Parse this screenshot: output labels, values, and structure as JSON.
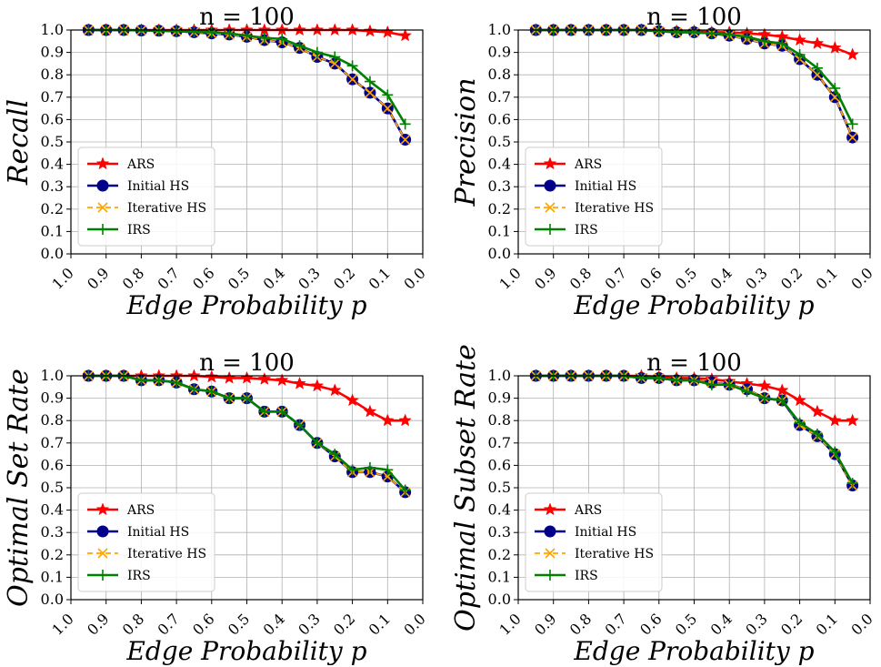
{
  "chart_data": [
    {
      "type": "line",
      "title": "n = 100",
      "xlabel": "Edge Probability p",
      "ylabel": "Recall",
      "xlim": [
        1.0,
        0.0
      ],
      "ylim": [
        0.0,
        1.0
      ],
      "x_ticks": [
        "1.0",
        "0.9",
        "0.8",
        "0.7",
        "0.6",
        "0.5",
        "0.4",
        "0.3",
        "0.2",
        "0.1",
        "0.0"
      ],
      "y_ticks": [
        "0.0",
        "0.1",
        "0.2",
        "0.3",
        "0.4",
        "0.5",
        "0.6",
        "0.7",
        "0.8",
        "0.9",
        "1.0"
      ],
      "grid": true,
      "legend_position": "lower-left",
      "x": [
        0.95,
        0.9,
        0.85,
        0.8,
        0.75,
        0.7,
        0.65,
        0.6,
        0.55,
        0.5,
        0.45,
        0.4,
        0.35,
        0.3,
        0.25,
        0.2,
        0.15,
        0.1,
        0.05
      ],
      "series": [
        {
          "name": "ARS",
          "color": "#ff0000",
          "marker": "star",
          "values": [
            1.0,
            1.0,
            1.0,
            1.0,
            1.0,
            1.0,
            1.0,
            1.0,
            1.0,
            1.0,
            1.0,
            1.0,
            1.0,
            1.0,
            1.0,
            1.0,
            0.995,
            0.99,
            0.975
          ]
        },
        {
          "name": "Initial HS",
          "color": "#00008b",
          "marker": "circle",
          "values": [
            1.0,
            1.0,
            1.0,
            0.998,
            0.997,
            0.995,
            0.99,
            0.985,
            0.98,
            0.97,
            0.955,
            0.945,
            0.92,
            0.88,
            0.85,
            0.78,
            0.72,
            0.65,
            0.51
          ]
        },
        {
          "name": "Iterative HS",
          "color": "#ffa500",
          "marker": "x",
          "dashed": true,
          "values": [
            1.0,
            1.0,
            1.0,
            0.998,
            0.997,
            0.995,
            0.99,
            0.985,
            0.98,
            0.97,
            0.955,
            0.945,
            0.92,
            0.88,
            0.85,
            0.78,
            0.72,
            0.65,
            0.51
          ]
        },
        {
          "name": "IRS",
          "color": "#008000",
          "marker": "plus",
          "values": [
            1.0,
            1.0,
            1.0,
            0.998,
            0.997,
            0.995,
            0.992,
            0.99,
            0.985,
            0.975,
            0.965,
            0.96,
            0.93,
            0.9,
            0.88,
            0.84,
            0.77,
            0.71,
            0.58
          ]
        }
      ]
    },
    {
      "type": "line",
      "title": "n = 100",
      "xlabel": "Edge Probability p",
      "ylabel": "Precision",
      "xlim": [
        1.0,
        0.0
      ],
      "ylim": [
        0.0,
        1.0
      ],
      "x_ticks": [
        "1.0",
        "0.9",
        "0.8",
        "0.7",
        "0.6",
        "0.5",
        "0.4",
        "0.3",
        "0.2",
        "0.1",
        "0.0"
      ],
      "y_ticks": [
        "0.0",
        "0.1",
        "0.2",
        "0.3",
        "0.4",
        "0.5",
        "0.6",
        "0.7",
        "0.8",
        "0.9",
        "1.0"
      ],
      "grid": true,
      "legend_position": "lower-left",
      "x": [
        0.95,
        0.9,
        0.85,
        0.8,
        0.75,
        0.7,
        0.65,
        0.6,
        0.55,
        0.5,
        0.45,
        0.4,
        0.35,
        0.3,
        0.25,
        0.2,
        0.15,
        0.1,
        0.05
      ],
      "series": [
        {
          "name": "ARS",
          "color": "#ff0000",
          "marker": "star",
          "values": [
            1.0,
            1.0,
            1.0,
            1.0,
            1.0,
            1.0,
            1.0,
            1.0,
            0.995,
            0.995,
            0.99,
            0.99,
            0.985,
            0.98,
            0.97,
            0.955,
            0.94,
            0.92,
            0.89
          ]
        },
        {
          "name": "Initial HS",
          "color": "#00008b",
          "marker": "circle",
          "values": [
            1.0,
            1.0,
            1.0,
            1.0,
            1.0,
            1.0,
            1.0,
            0.995,
            0.99,
            0.99,
            0.985,
            0.975,
            0.96,
            0.94,
            0.93,
            0.87,
            0.8,
            0.7,
            0.52
          ]
        },
        {
          "name": "Iterative HS",
          "color": "#ffa500",
          "marker": "x",
          "dashed": true,
          "values": [
            1.0,
            1.0,
            1.0,
            1.0,
            1.0,
            1.0,
            1.0,
            0.995,
            0.99,
            0.99,
            0.985,
            0.975,
            0.96,
            0.94,
            0.93,
            0.87,
            0.8,
            0.7,
            0.52
          ]
        },
        {
          "name": "IRS",
          "color": "#008000",
          "marker": "plus",
          "values": [
            1.0,
            1.0,
            1.0,
            1.0,
            1.0,
            1.0,
            1.0,
            0.995,
            0.99,
            0.99,
            0.985,
            0.98,
            0.97,
            0.95,
            0.94,
            0.89,
            0.83,
            0.74,
            0.58
          ]
        }
      ]
    },
    {
      "type": "line",
      "title": "n = 100",
      "xlabel": "Edge Probability p",
      "ylabel": "Optimal Set Rate",
      "xlim": [
        1.0,
        0.0
      ],
      "ylim": [
        0.0,
        1.0
      ],
      "x_ticks": [
        "1.0",
        "0.9",
        "0.8",
        "0.7",
        "0.6",
        "0.5",
        "0.4",
        "0.3",
        "0.2",
        "0.1",
        "0.0"
      ],
      "y_ticks": [
        "0.0",
        "0.1",
        "0.2",
        "0.3",
        "0.4",
        "0.5",
        "0.6",
        "0.7",
        "0.8",
        "0.9",
        "1.0"
      ],
      "grid": true,
      "legend_position": "lower-left",
      "x": [
        0.95,
        0.9,
        0.85,
        0.8,
        0.75,
        0.7,
        0.65,
        0.6,
        0.55,
        0.5,
        0.45,
        0.4,
        0.35,
        0.3,
        0.25,
        0.2,
        0.15,
        0.1,
        0.05
      ],
      "series": [
        {
          "name": "ARS",
          "color": "#ff0000",
          "marker": "star",
          "values": [
            1.0,
            1.0,
            1.0,
            1.0,
            1.0,
            1.0,
            1.0,
            0.995,
            0.99,
            0.99,
            0.985,
            0.98,
            0.965,
            0.955,
            0.935,
            0.89,
            0.84,
            0.8,
            0.8
          ]
        },
        {
          "name": "Initial HS",
          "color": "#00008b",
          "marker": "circle",
          "values": [
            1.0,
            1.0,
            1.0,
            0.98,
            0.98,
            0.97,
            0.94,
            0.93,
            0.9,
            0.9,
            0.84,
            0.84,
            0.78,
            0.7,
            0.64,
            0.57,
            0.57,
            0.55,
            0.48
          ]
        },
        {
          "name": "Iterative HS",
          "color": "#ffa500",
          "marker": "x",
          "dashed": true,
          "values": [
            1.0,
            1.0,
            1.0,
            0.98,
            0.98,
            0.97,
            0.94,
            0.93,
            0.9,
            0.9,
            0.84,
            0.84,
            0.78,
            0.7,
            0.64,
            0.57,
            0.57,
            0.55,
            0.48
          ]
        },
        {
          "name": "IRS",
          "color": "#008000",
          "marker": "plus",
          "values": [
            1.0,
            1.0,
            1.0,
            0.98,
            0.98,
            0.97,
            0.94,
            0.93,
            0.9,
            0.9,
            0.84,
            0.84,
            0.78,
            0.7,
            0.65,
            0.58,
            0.59,
            0.58,
            0.49
          ]
        }
      ]
    },
    {
      "type": "line",
      "title": "n = 100",
      "xlabel": "Edge Probability p",
      "ylabel": "Optimal Subset Rate",
      "xlim": [
        1.0,
        0.0
      ],
      "ylim": [
        0.0,
        1.0
      ],
      "x_ticks": [
        "1.0",
        "0.9",
        "0.8",
        "0.7",
        "0.6",
        "0.5",
        "0.4",
        "0.3",
        "0.2",
        "0.1",
        "0.0"
      ],
      "y_ticks": [
        "0.0",
        "0.1",
        "0.2",
        "0.3",
        "0.4",
        "0.5",
        "0.6",
        "0.7",
        "0.8",
        "0.9",
        "1.0"
      ],
      "grid": true,
      "legend_position": "lower-left",
      "x": [
        0.95,
        0.9,
        0.85,
        0.8,
        0.75,
        0.7,
        0.65,
        0.6,
        0.55,
        0.5,
        0.45,
        0.4,
        0.35,
        0.3,
        0.25,
        0.2,
        0.15,
        0.1,
        0.05
      ],
      "series": [
        {
          "name": "ARS",
          "color": "#ff0000",
          "marker": "star",
          "values": [
            1.0,
            1.0,
            1.0,
            1.0,
            1.0,
            1.0,
            1.0,
            0.995,
            0.99,
            0.99,
            0.985,
            0.975,
            0.965,
            0.955,
            0.935,
            0.89,
            0.84,
            0.8,
            0.8
          ]
        },
        {
          "name": "Initial HS",
          "color": "#00008b",
          "marker": "circle",
          "values": [
            1.0,
            1.0,
            1.0,
            1.0,
            1.0,
            1.0,
            0.99,
            0.99,
            0.98,
            0.98,
            0.97,
            0.96,
            0.94,
            0.9,
            0.89,
            0.78,
            0.73,
            0.65,
            0.51
          ]
        },
        {
          "name": "Iterative HS",
          "color": "#ffa500",
          "marker": "x",
          "dashed": true,
          "values": [
            1.0,
            1.0,
            1.0,
            1.0,
            1.0,
            1.0,
            0.99,
            0.99,
            0.98,
            0.98,
            0.97,
            0.96,
            0.94,
            0.9,
            0.89,
            0.78,
            0.73,
            0.65,
            0.51
          ]
        },
        {
          "name": "IRS",
          "color": "#008000",
          "marker": "plus",
          "values": [
            1.0,
            1.0,
            1.0,
            1.0,
            1.0,
            1.0,
            0.99,
            0.99,
            0.98,
            0.98,
            0.96,
            0.96,
            0.93,
            0.9,
            0.89,
            0.79,
            0.74,
            0.66,
            0.52
          ]
        }
      ]
    }
  ]
}
